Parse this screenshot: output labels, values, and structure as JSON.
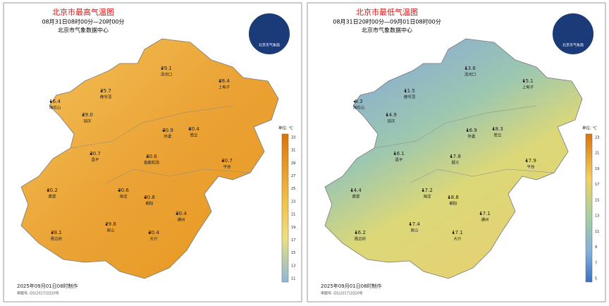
{
  "panels": [
    {
      "title": "北京市最高气温图",
      "subtitle": "08月31日08时00分—20时00分",
      "source": "北京市气象数据中心",
      "emblem": "北京市气象局",
      "unit": "单位: ℃",
      "colorbar_ticks": [
        "33",
        "31",
        "29",
        "27",
        "25",
        "23",
        "21",
        "19",
        "17",
        "15",
        "13",
        "11"
      ],
      "stations": [
        {
          "value": "29.1",
          "name": "汤河口"
        },
        {
          "value": "28.4",
          "name": "上甸子"
        },
        {
          "value": "25.7",
          "name": "佛爷顶"
        },
        {
          "value": "16.4",
          "name": "海坨山"
        },
        {
          "value": "29.0",
          "name": "延庆"
        },
        {
          "value": "30.9",
          "name": "怀柔"
        },
        {
          "value": "30.4",
          "name": "密云"
        },
        {
          "value": "30.7",
          "name": "昌平"
        },
        {
          "value": "30.6",
          "name": "首都机场"
        },
        {
          "value": "30.7",
          "name": "平谷"
        },
        {
          "value": "30.2",
          "name": "斋堂"
        },
        {
          "value": "30.6",
          "name": "海淀"
        },
        {
          "value": "30.8",
          "name": "朝阳"
        },
        {
          "value": "30.4",
          "name": "通州"
        },
        {
          "value": "29.8",
          "name": "房山"
        },
        {
          "value": "28.1",
          "name": "霞云岭"
        },
        {
          "value": "30.4",
          "name": "大兴"
        }
      ],
      "footer": "2025年09月01日08时制作",
      "approval": "审图号: GS(2017)3320号"
    },
    {
      "title": "北京市最低气温图",
      "subtitle": "08月31日20时00分—09月01日08时00分",
      "source": "北京市气象数据中心",
      "emblem": "北京市气象局",
      "unit": "单位: ℃",
      "colorbar_ticks": [
        "23",
        "21",
        "19",
        "17",
        "15",
        "13",
        "11",
        "9",
        "7",
        "5"
      ],
      "stations": [
        {
          "value": "13.6",
          "name": "汤河口"
        },
        {
          "value": "15.1",
          "name": "上甸子"
        },
        {
          "value": "11.5",
          "name": "佛爷顶"
        },
        {
          "value": "9.3",
          "name": "海坨山"
        },
        {
          "value": "14.9",
          "name": "延庆"
        },
        {
          "value": "16.9",
          "name": "怀柔"
        },
        {
          "value": "18.3",
          "name": "密云"
        },
        {
          "value": "16.1",
          "name": "昌平"
        },
        {
          "value": "17.8",
          "name": "顺义"
        },
        {
          "value": "17.9",
          "name": "平谷"
        },
        {
          "value": "14.4",
          "name": "斋堂"
        },
        {
          "value": "17.2",
          "name": "海淀"
        },
        {
          "value": "18.8",
          "name": "朝阳"
        },
        {
          "value": "17.1",
          "name": "通州"
        },
        {
          "value": "17.4",
          "name": "房山"
        },
        {
          "value": "16.2",
          "name": "霞云岭"
        },
        {
          "value": "17.1",
          "name": "大兴"
        }
      ],
      "footer": "2025年09月01日08时制作",
      "approval": "审图号: GS(2017)3320号"
    }
  ]
}
